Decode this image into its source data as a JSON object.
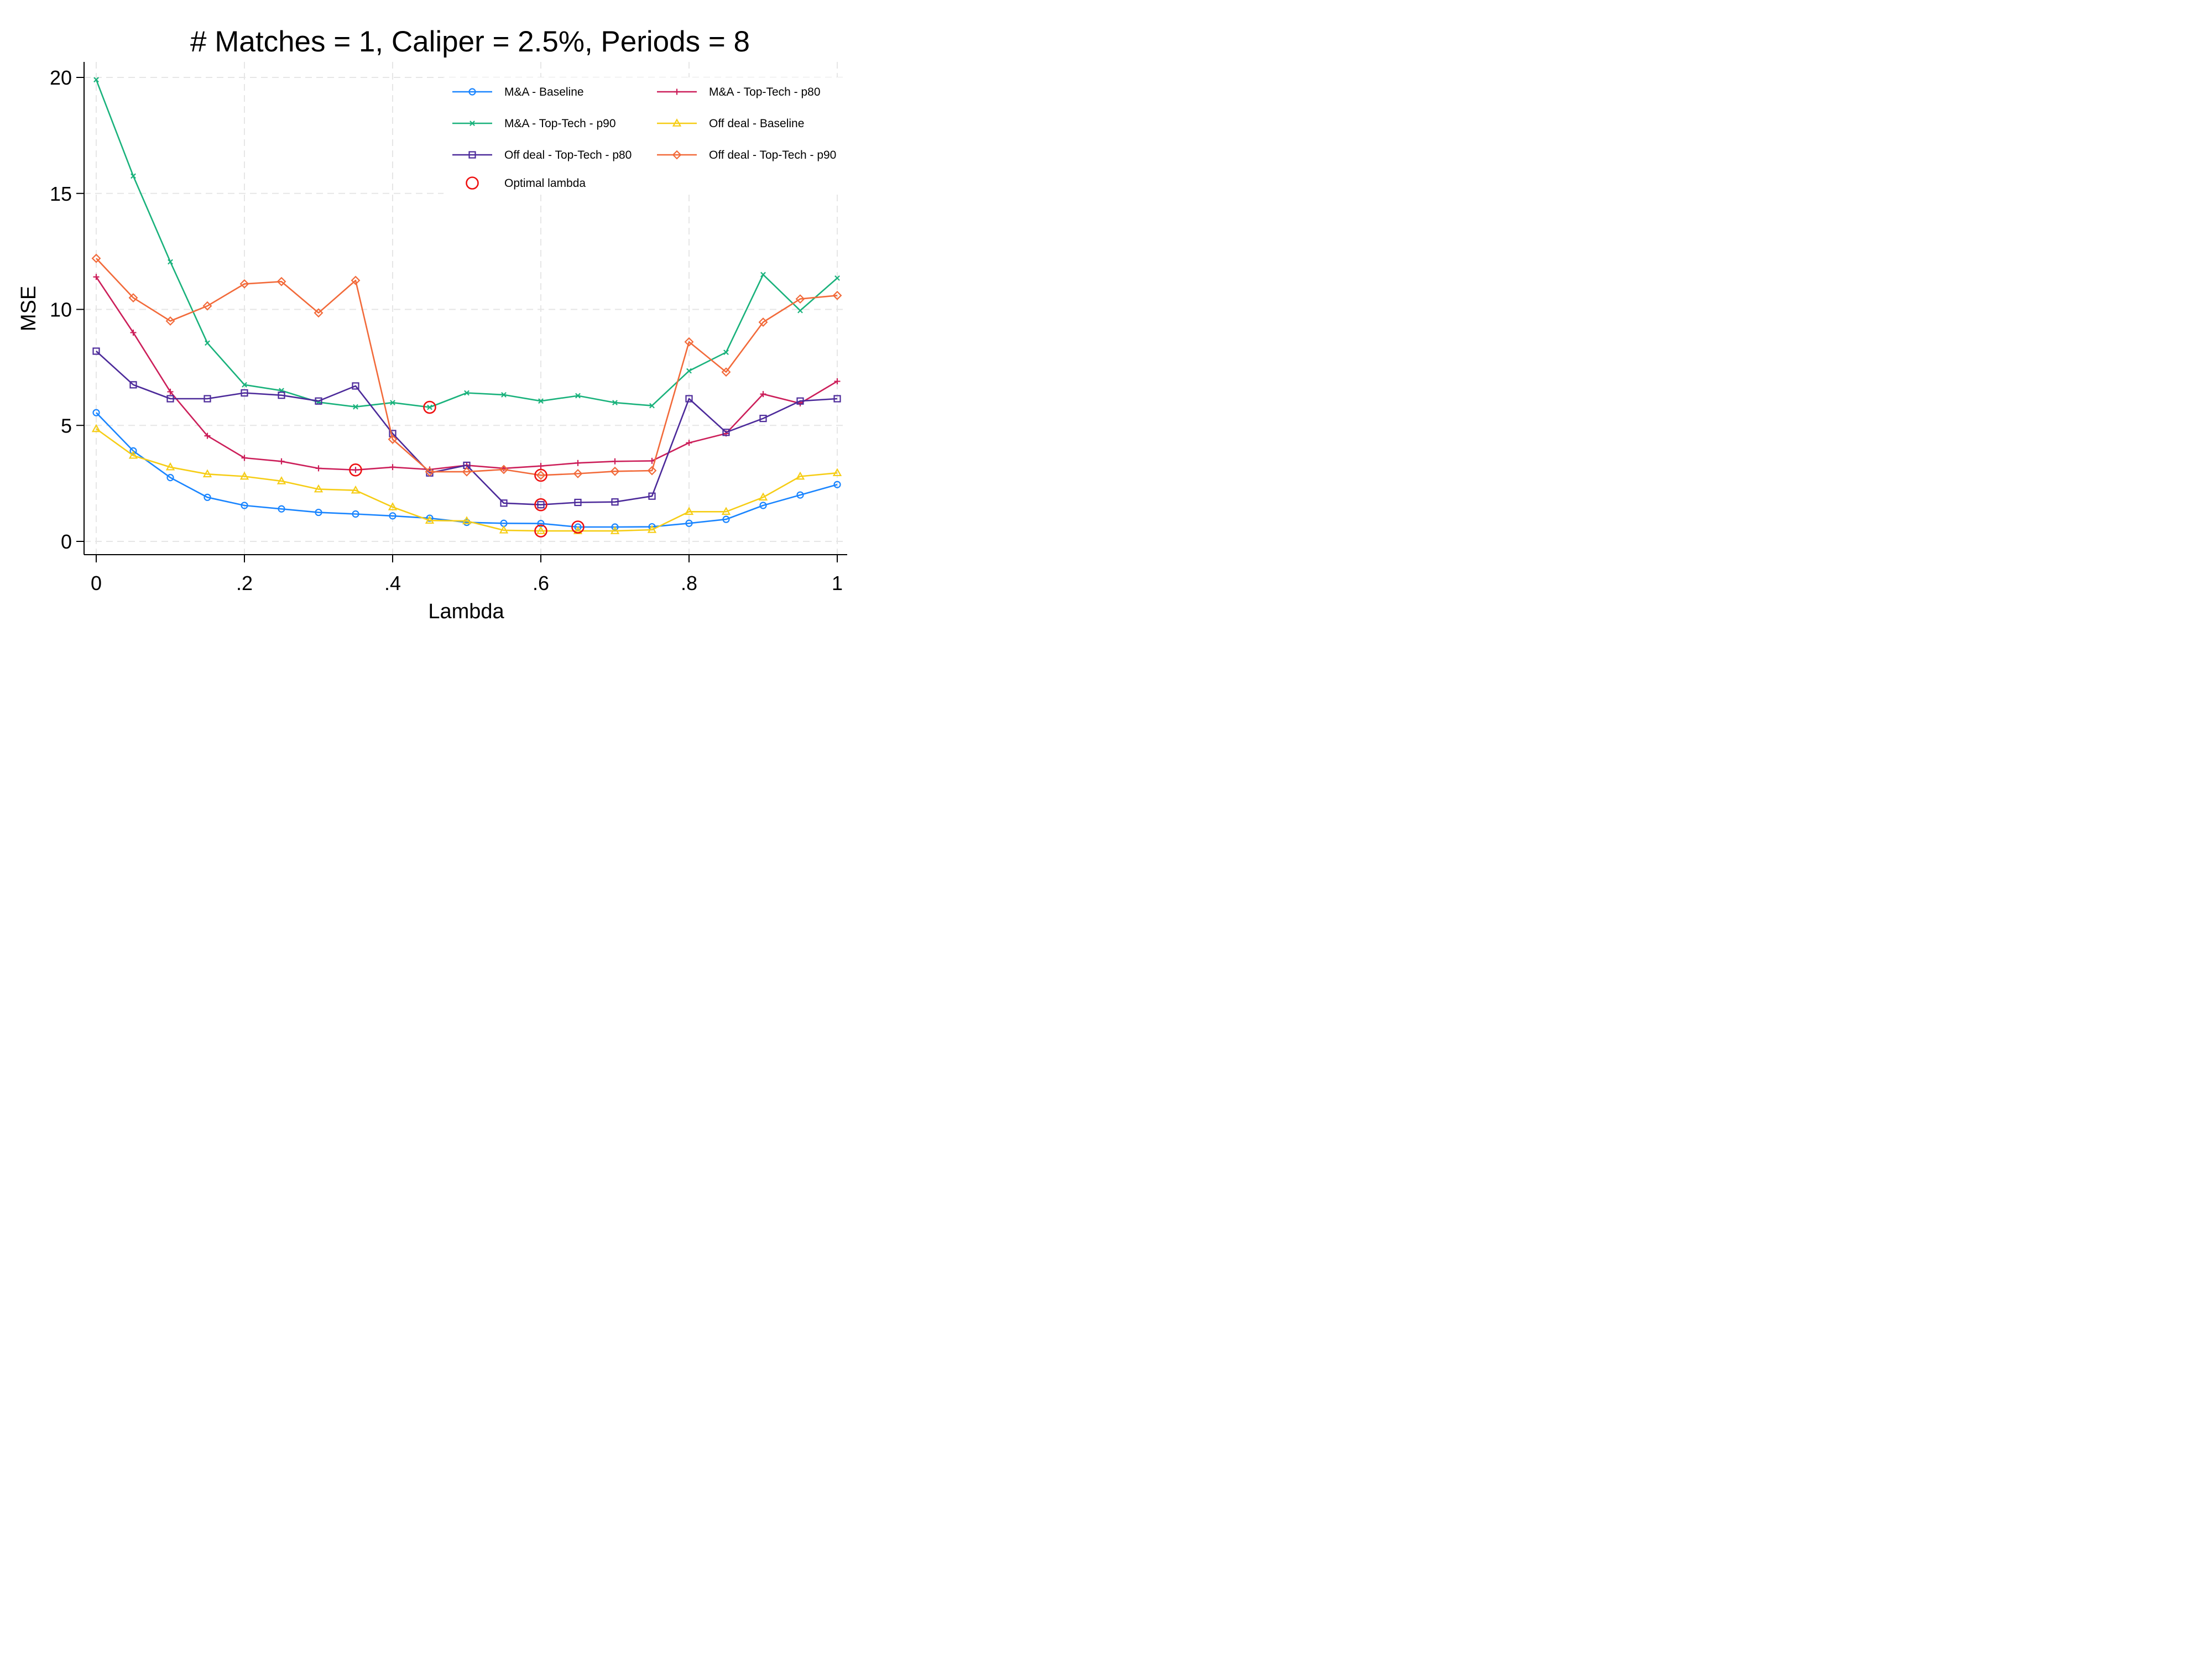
{
  "chart_data": {
    "type": "line",
    "title": "# Matches = 1, Caliper = 2.5%, Periods = 8",
    "xlabel": "Lambda",
    "ylabel": "MSE",
    "xlim": [
      0,
      1
    ],
    "ylim": [
      0,
      20
    ],
    "x_ticks": [
      {
        "value": 0,
        "label": "0"
      },
      {
        "value": 0.2,
        "label": ".2"
      },
      {
        "value": 0.4,
        "label": ".4"
      },
      {
        "value": 0.6,
        "label": ".6"
      },
      {
        "value": 0.8,
        "label": ".8"
      },
      {
        "value": 1,
        "label": "1"
      }
    ],
    "y_ticks": [
      {
        "value": 0,
        "label": "0"
      },
      {
        "value": 5,
        "label": "5"
      },
      {
        "value": 10,
        "label": "10"
      },
      {
        "value": 15,
        "label": "15"
      },
      {
        "value": 20,
        "label": "20"
      }
    ],
    "grid": true,
    "legend_position": "top-right",
    "x": [
      0,
      0.05,
      0.1,
      0.15,
      0.2,
      0.25,
      0.3,
      0.35,
      0.4,
      0.45,
      0.5,
      0.55,
      0.6,
      0.65,
      0.7,
      0.75,
      0.8,
      0.85,
      0.9,
      0.95,
      1
    ],
    "series": [
      {
        "name": "M&A - Baseline",
        "color": "#1a85ff",
        "marker": "circle",
        "values": [
          5.55,
          3.9,
          2.75,
          1.9,
          1.55,
          1.4,
          1.25,
          1.18,
          1.1,
          1.0,
          0.82,
          0.78,
          0.77,
          0.62,
          0.62,
          0.63,
          0.78,
          0.95,
          1.55,
          2.0,
          2.45
        ]
      },
      {
        "name": "M&A - Top-Tech - p80",
        "color": "#cc1f5a",
        "marker": "plus",
        "values": [
          11.4,
          9.0,
          6.45,
          4.55,
          3.6,
          3.45,
          3.15,
          3.08,
          3.2,
          3.1,
          3.28,
          3.15,
          3.25,
          3.38,
          3.45,
          3.47,
          4.25,
          4.65,
          6.35,
          5.95,
          6.9
        ]
      },
      {
        "name": "M&A - Top-Tech - p90",
        "color": "#1ab27c",
        "marker": "x",
        "values": [
          19.9,
          15.75,
          12.05,
          8.55,
          6.75,
          6.5,
          6.0,
          5.8,
          5.98,
          5.78,
          6.4,
          6.32,
          6.05,
          6.28,
          5.98,
          5.85,
          7.35,
          8.15,
          11.5,
          9.95,
          11.35
        ]
      },
      {
        "name": "Off deal - Baseline",
        "color": "#f6cd16",
        "marker": "triangle",
        "values": [
          4.85,
          3.7,
          3.2,
          2.9,
          2.8,
          2.6,
          2.25,
          2.2,
          1.48,
          0.9,
          0.88,
          0.48,
          0.45,
          0.45,
          0.45,
          0.5,
          1.28,
          1.28,
          1.9,
          2.8,
          2.95
        ]
      },
      {
        "name": "Off deal - Top-Tech - p80",
        "color": "#4c2a9a",
        "marker": "square",
        "values": [
          8.2,
          6.75,
          6.15,
          6.15,
          6.4,
          6.3,
          6.05,
          6.7,
          4.65,
          2.95,
          3.28,
          1.65,
          1.58,
          1.68,
          1.7,
          1.95,
          6.15,
          4.7,
          5.3,
          6.05,
          6.15
        ]
      },
      {
        "name": "Off deal - Top-Tech - p90",
        "color": "#f26a3a",
        "marker": "diamond",
        "values": [
          12.2,
          10.5,
          9.5,
          10.15,
          11.1,
          11.2,
          9.85,
          11.25,
          4.4,
          3.0,
          3.0,
          3.1,
          2.85,
          2.92,
          3.02,
          3.05,
          8.6,
          7.3,
          9.45,
          10.45,
          10.6
        ]
      }
    ],
    "optimal_lambda": {
      "name": "Optimal lambda",
      "color": "#ee1111",
      "points": [
        {
          "x": 0.45,
          "y": 5.78
        },
        {
          "x": 0.35,
          "y": 3.08
        },
        {
          "x": 0.6,
          "y": 2.85
        },
        {
          "x": 0.6,
          "y": 1.58
        },
        {
          "x": 0.65,
          "y": 0.62
        },
        {
          "x": 0.6,
          "y": 0.45
        }
      ]
    },
    "legend": {
      "rows": [
        [
          "M&A - Baseline",
          "M&A - Top-Tech - p80"
        ],
        [
          "M&A - Top-Tech - p90",
          "Off deal - Baseline"
        ],
        [
          "Off deal - Top-Tech - p80",
          "Off deal - Top-Tech - p90"
        ],
        [
          "Optimal lambda"
        ]
      ]
    }
  }
}
